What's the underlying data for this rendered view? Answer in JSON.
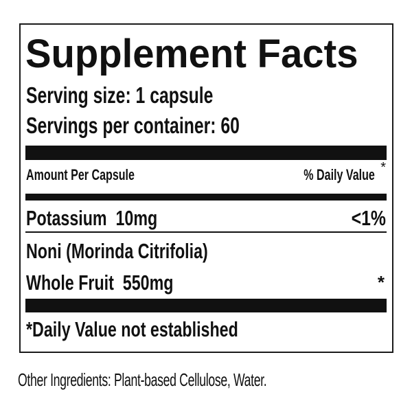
{
  "label": {
    "title": "Supplement Facts",
    "serving_size": "Serving size: 1 capsule",
    "servings_per_container": "Servings per container: 60",
    "header": {
      "amount": "Amount Per Capsule",
      "daily_value": "% Daily Value",
      "daily_value_mark": "*"
    },
    "rows": [
      {
        "name": "Potassium  10mg",
        "dv": "<1%"
      },
      {
        "name": "Noni (Morinda Citrifolia)",
        "dv": ""
      },
      {
        "name": "Whole Fruit  550mg",
        "dv": "*"
      }
    ],
    "footnote": "*Daily Value not established"
  },
  "other_ingredients": "Other Ingredients: Plant-based Cellulose, Water."
}
